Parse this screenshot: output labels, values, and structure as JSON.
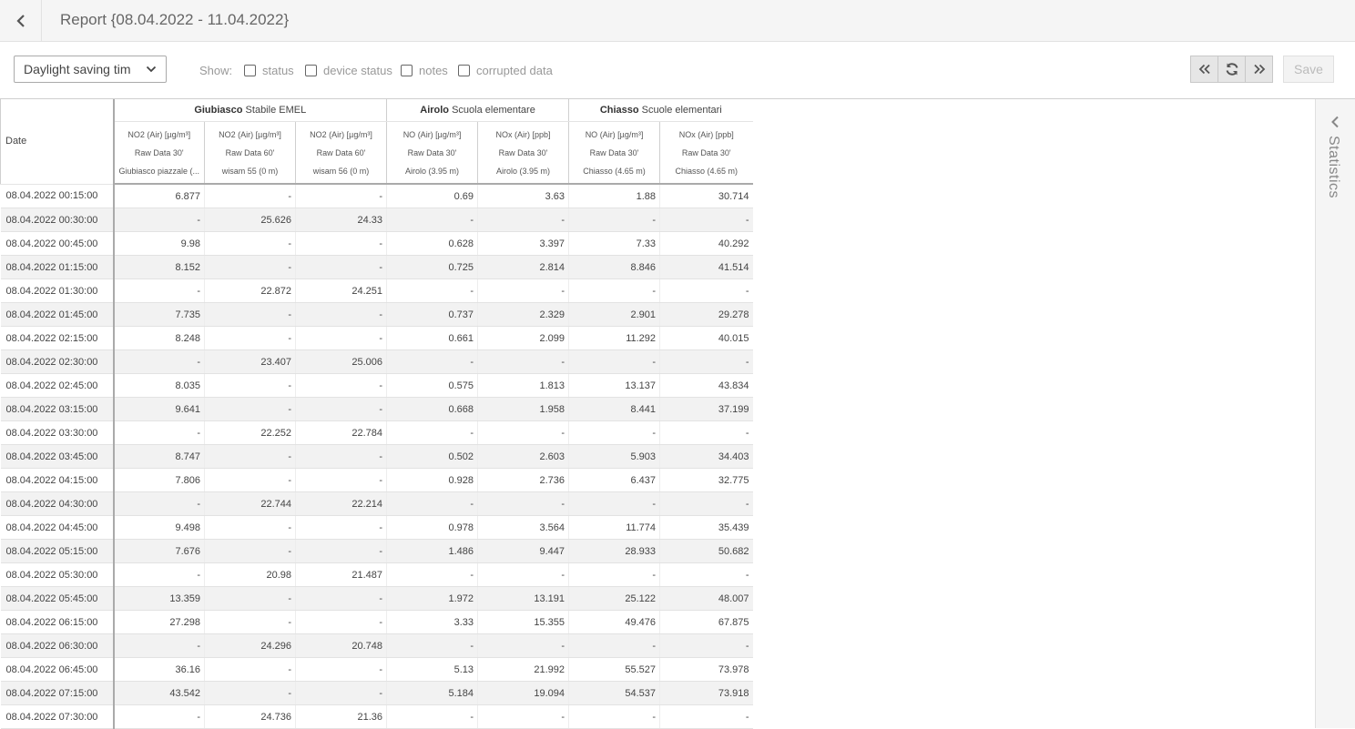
{
  "header": {
    "title": "Report {08.04.2022 - 11.04.2022}",
    "back_icon": "chevron-left-icon"
  },
  "toolbar": {
    "dst_select": "Daylight saving tim",
    "show_label": "Show:",
    "checkboxes": [
      {
        "label": "status",
        "checked": false
      },
      {
        "label": "device status",
        "checked": false
      },
      {
        "label": "notes",
        "checked": false
      },
      {
        "label": "corrupted data",
        "checked": false
      }
    ],
    "save_label": "Save"
  },
  "table": {
    "date_label": "Date",
    "groups": [
      {
        "bold": "Giubiasco",
        "rest": " Stabile EMEL"
      },
      {
        "bold": "Airolo",
        "rest": " Scuola elementare"
      },
      {
        "bold": "Chiasso",
        "rest": " Scuole elementari"
      }
    ],
    "columns": [
      {
        "param": "NO2",
        "unit": " (Air) [µg/m³]",
        "source": "Raw Data 30'",
        "site": "Giubiasco piazzale (...",
        "height": ""
      },
      {
        "param": "NO2",
        "unit": " (Air) [µg/m³]",
        "source": "Raw Data 60'",
        "site": "wisam 55",
        "height": " (0 m)"
      },
      {
        "param": "NO2",
        "unit": " (Air) [µg/m³]",
        "source": "Raw Data 60'",
        "site": "wisam 56",
        "height": " (0 m)"
      },
      {
        "param": "NO",
        "unit": " (Air) [µg/m³]",
        "source": "Raw Data 30'",
        "site": "Airolo",
        "height": " (3.95 m)"
      },
      {
        "param": "NOx",
        "unit": " (Air) [ppb]",
        "source": "Raw Data 30'",
        "site": "Airolo",
        "height": " (3.95 m)"
      },
      {
        "param": "NO",
        "unit": " (Air) [µg/m³]",
        "source": "Raw Data 30'",
        "site": "Chiasso",
        "height": " (4.65 m)"
      },
      {
        "param": "NOx",
        "unit": " (Air) [ppb]",
        "source": "Raw Data 30'",
        "site": "Chiasso",
        "height": " (4.65 m)"
      }
    ],
    "rows": [
      [
        "08.04.2022 00:15:00",
        "6.877",
        "-",
        "-",
        "0.69",
        "3.63",
        "1.88",
        "30.714"
      ],
      [
        "08.04.2022 00:30:00",
        "-",
        "25.626",
        "24.33",
        "-",
        "-",
        "-",
        "-"
      ],
      [
        "08.04.2022 00:45:00",
        "9.98",
        "-",
        "-",
        "0.628",
        "3.397",
        "7.33",
        "40.292"
      ],
      [
        "08.04.2022 01:15:00",
        "8.152",
        "-",
        "-",
        "0.725",
        "2.814",
        "8.846",
        "41.514"
      ],
      [
        "08.04.2022 01:30:00",
        "-",
        "22.872",
        "24.251",
        "-",
        "-",
        "-",
        "-"
      ],
      [
        "08.04.2022 01:45:00",
        "7.735",
        "-",
        "-",
        "0.737",
        "2.329",
        "2.901",
        "29.278"
      ],
      [
        "08.04.2022 02:15:00",
        "8.248",
        "-",
        "-",
        "0.661",
        "2.099",
        "11.292",
        "40.015"
      ],
      [
        "08.04.2022 02:30:00",
        "-",
        "23.407",
        "25.006",
        "-",
        "-",
        "-",
        "-"
      ],
      [
        "08.04.2022 02:45:00",
        "8.035",
        "-",
        "-",
        "0.575",
        "1.813",
        "13.137",
        "43.834"
      ],
      [
        "08.04.2022 03:15:00",
        "9.641",
        "-",
        "-",
        "0.668",
        "1.958",
        "8.441",
        "37.199"
      ],
      [
        "08.04.2022 03:30:00",
        "-",
        "22.252",
        "22.784",
        "-",
        "-",
        "-",
        "-"
      ],
      [
        "08.04.2022 03:45:00",
        "8.747",
        "-",
        "-",
        "0.502",
        "2.603",
        "5.903",
        "34.403"
      ],
      [
        "08.04.2022 04:15:00",
        "7.806",
        "-",
        "-",
        "0.928",
        "2.736",
        "6.437",
        "32.775"
      ],
      [
        "08.04.2022 04:30:00",
        "-",
        "22.744",
        "22.214",
        "-",
        "-",
        "-",
        "-"
      ],
      [
        "08.04.2022 04:45:00",
        "9.498",
        "-",
        "-",
        "0.978",
        "3.564",
        "11.774",
        "35.439"
      ],
      [
        "08.04.2022 05:15:00",
        "7.676",
        "-",
        "-",
        "1.486",
        "9.447",
        "28.933",
        "50.682"
      ],
      [
        "08.04.2022 05:30:00",
        "-",
        "20.98",
        "21.487",
        "-",
        "-",
        "-",
        "-"
      ],
      [
        "08.04.2022 05:45:00",
        "13.359",
        "-",
        "-",
        "1.972",
        "13.191",
        "25.122",
        "48.007"
      ],
      [
        "08.04.2022 06:15:00",
        "27.298",
        "-",
        "-",
        "3.33",
        "15.355",
        "49.476",
        "67.875"
      ],
      [
        "08.04.2022 06:30:00",
        "-",
        "24.296",
        "20.748",
        "-",
        "-",
        "-",
        "-"
      ],
      [
        "08.04.2022 06:45:00",
        "36.16",
        "-",
        "-",
        "5.13",
        "21.992",
        "55.527",
        "73.978"
      ],
      [
        "08.04.2022 07:15:00",
        "43.542",
        "-",
        "-",
        "5.184",
        "19.094",
        "54.537",
        "73.918"
      ],
      [
        "08.04.2022 07:30:00",
        "-",
        "24.736",
        "21.36",
        "-",
        "-",
        "-",
        "-"
      ]
    ]
  },
  "statistics_panel": {
    "label": "Statistics"
  }
}
